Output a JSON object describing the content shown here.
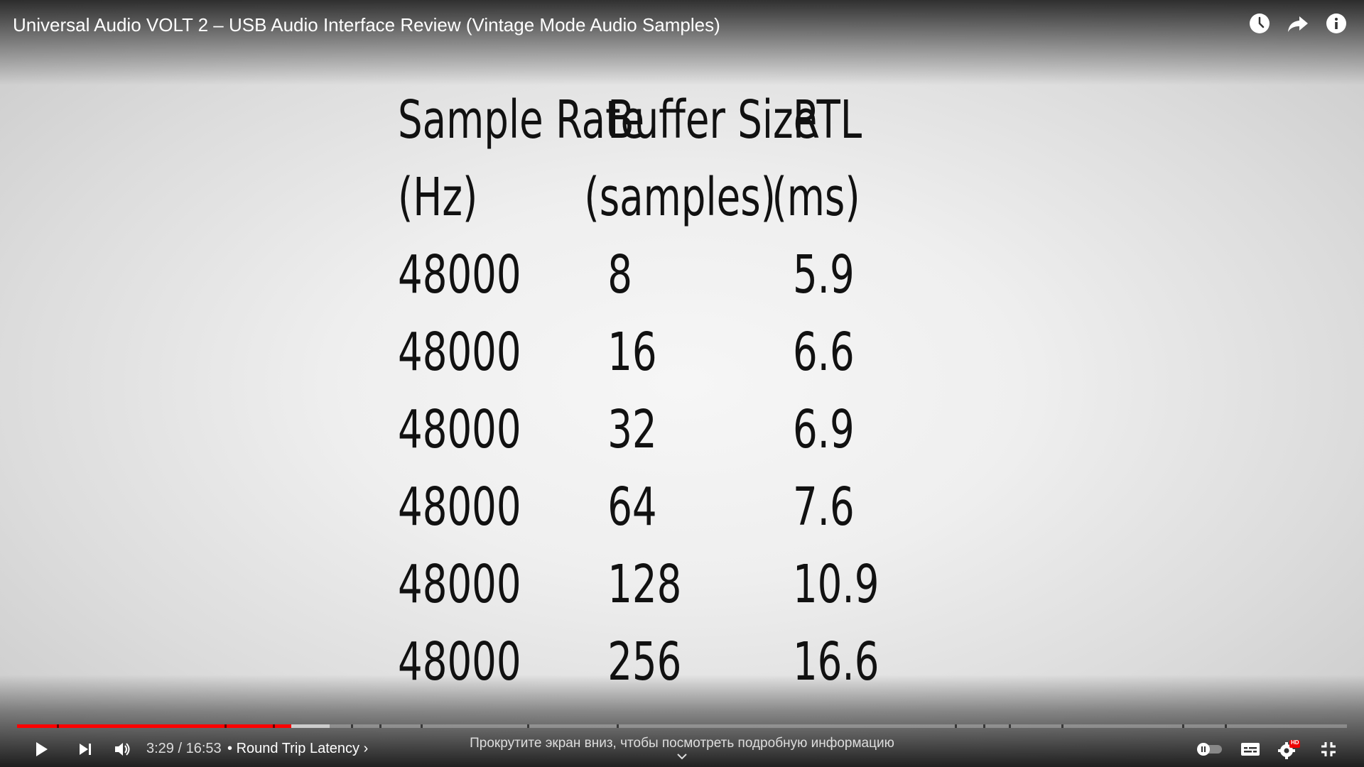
{
  "player": {
    "title": "Universal Audio VOLT 2 – USB Audio Interface Review (Vintage Mode Audio Samples)",
    "time_current": "3:29",
    "time_separator": "/",
    "time_total": "16:53",
    "chapter_prefix": "•",
    "chapter_title": "Round Trip Latency",
    "chapter_chevron": "›",
    "scroll_hint": "Прокрутите экран вниз, чтобы посмотреть подробную информацию",
    "progress_played_fraction": 0.206,
    "progress_buffered_fraction": 0.235,
    "hd_badge": "HD",
    "accent_color": "#ff0000",
    "icons": [
      "clock-icon",
      "share-icon",
      "info-icon",
      "play-icon",
      "next-icon",
      "volume-icon",
      "autoplay-toggle-icon",
      "subtitles-icon",
      "settings-icon",
      "exit-fullscreen-icon"
    ]
  },
  "slide": {
    "headers": [
      "Sample Rate",
      "Buffer Size",
      "RTL"
    ],
    "subheaders": [
      "(Hz)",
      "(samples)",
      "(ms)"
    ],
    "rows": [
      [
        "48000",
        "8",
        "5.9"
      ],
      [
        "48000",
        "16",
        "6.6"
      ],
      [
        "48000",
        "32",
        "6.9"
      ],
      [
        "48000",
        "64",
        "7.6"
      ],
      [
        "48000",
        "128",
        "10.9"
      ],
      [
        "48000",
        "256",
        "16.6"
      ]
    ]
  }
}
